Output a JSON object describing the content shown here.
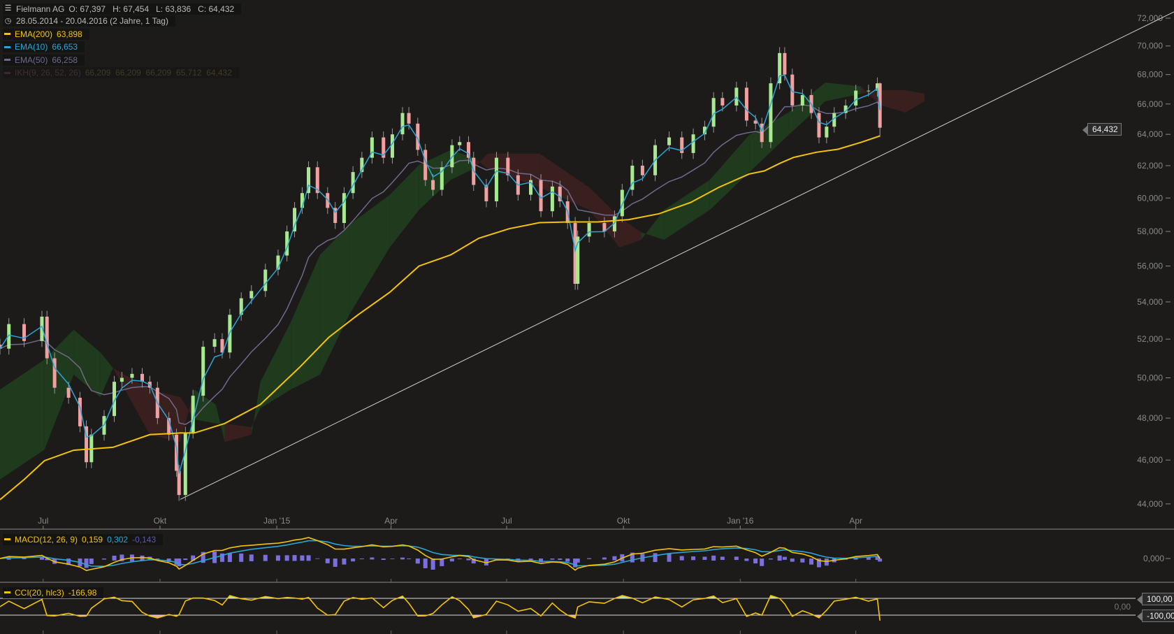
{
  "header": {
    "instrument": "Fielmann AG",
    "ohlc": "O: 67,397   H: 67,454   L: 63,836   C: 64,432",
    "range": "28.05.2014 - 20.04.2016 (2 Jahre, 1 Tag)",
    "icons": {
      "chart": "chart-settings-icon",
      "time": "clock-icon"
    }
  },
  "legend": [
    {
      "label": "EMA(200)",
      "value": "63,898",
      "color": "#f5c400"
    },
    {
      "label": "EMA(10)",
      "value": "66,653",
      "color": "#2aa6d6"
    },
    {
      "label": "EMA(50)",
      "value": "66,258",
      "color": "#6e6a8a"
    },
    {
      "label": "IKH(9, 26, 52, 26)",
      "value": "66,209  66,209  66,209  65,712  64,432",
      "color": "#3a2a35"
    }
  ],
  "macd_legend": {
    "label": "MACD(12, 26, 9)",
    "v1": "0,159",
    "v2": "0,302",
    "v3": "-0,143"
  },
  "cci_legend": {
    "label": "CCI(20, hlc3)",
    "value": "-166,98"
  },
  "last_price_tag": "64,432",
  "macd_axis": {
    "zero": "0,000"
  },
  "cci_axis": {
    "upper": "100,00",
    "zero": "0,00",
    "lower": "-100,00"
  },
  "colors": {
    "background": "#1c1b1a",
    "up": "#a8e890",
    "down": "#f0a0a0",
    "cloud_up": "#1f3a1c",
    "cloud_down": "#3a1f1f",
    "histogram": "#7b6fe0",
    "macd": "#f5c400",
    "signal": "#2aa6d6",
    "cci": "#f5c400",
    "trendline": "#d0d0d0"
  },
  "chart_data": {
    "type": "candlestick",
    "scale": "log",
    "ylim": [
      44000,
      72000
    ],
    "y_ticks": [
      "72,000",
      "70,000",
      "68,000",
      "66,000",
      "64,000",
      "62,000",
      "60,000",
      "58,000",
      "56,000",
      "54,000",
      "52,000",
      "50,000",
      "48,000",
      "46,000",
      "44,000"
    ],
    "y_tick_values": [
      72000,
      70000,
      68000,
      66000,
      64000,
      62000,
      60000,
      58000,
      56000,
      54000,
      52000,
      50000,
      48000,
      46000,
      44000
    ],
    "x_range": [
      "2014-05-28",
      "2016-04-20"
    ],
    "x_ticks": [
      {
        "date": "2014-07-01",
        "label": "Jul"
      },
      {
        "date": "2014-10-01",
        "label": "Okt"
      },
      {
        "date": "2015-01-01",
        "label": "Jan '15"
      },
      {
        "date": "2015-04-01",
        "label": "Apr"
      },
      {
        "date": "2015-07-01",
        "label": "Jul"
      },
      {
        "date": "2015-10-01",
        "label": "Okt"
      },
      {
        "date": "2016-01-01",
        "label": "Jan '16"
      },
      {
        "date": "2016-04-01",
        "label": "Apr"
      }
    ],
    "last_candle": {
      "open": 67397,
      "high": 67454,
      "low": 63836,
      "close": 64432
    },
    "close": [
      [
        "2014-05-28",
        51500
      ],
      [
        "2014-06-04",
        52800
      ],
      [
        "2014-06-16",
        51900
      ],
      [
        "2014-06-30",
        53200
      ],
      [
        "2014-07-04",
        51000
      ],
      [
        "2014-07-10",
        49500
      ],
      [
        "2014-07-21",
        49000
      ],
      [
        "2014-07-30",
        47600
      ],
      [
        "2014-08-04",
        45900
      ],
      [
        "2014-08-08",
        47200
      ],
      [
        "2014-08-18",
        48100
      ],
      [
        "2014-08-26",
        49800
      ],
      [
        "2014-09-01",
        50000
      ],
      [
        "2014-09-09",
        50200
      ],
      [
        "2014-09-17",
        49800
      ],
      [
        "2014-09-23",
        49500
      ],
      [
        "2014-09-29",
        48000
      ],
      [
        "2014-10-08",
        47200
      ],
      [
        "2014-10-14",
        45500
      ],
      [
        "2014-10-16",
        44400
      ],
      [
        "2014-10-21",
        47300
      ],
      [
        "2014-10-27",
        49100
      ],
      [
        "2014-11-04",
        51600
      ],
      [
        "2014-11-13",
        52000
      ],
      [
        "2014-11-19",
        51300
      ],
      [
        "2014-11-25",
        53300
      ],
      [
        "2014-12-04",
        54200
      ],
      [
        "2014-12-12",
        54600
      ],
      [
        "2014-12-23",
        55800
      ],
      [
        "2015-01-02",
        56600
      ],
      [
        "2015-01-09",
        58000
      ],
      [
        "2015-01-15",
        59400
      ],
      [
        "2015-01-21",
        60300
      ],
      [
        "2015-01-26",
        61900
      ],
      [
        "2015-02-02",
        60300
      ],
      [
        "2015-02-10",
        59400
      ],
      [
        "2015-02-16",
        58500
      ],
      [
        "2015-02-23",
        60300
      ],
      [
        "2015-03-02",
        61600
      ],
      [
        "2015-03-09",
        62500
      ],
      [
        "2015-03-17",
        63800
      ],
      [
        "2015-03-26",
        62500
      ],
      [
        "2015-04-02",
        64000
      ],
      [
        "2015-04-10",
        65400
      ],
      [
        "2015-04-15",
        64700
      ],
      [
        "2015-04-22",
        63000
      ],
      [
        "2015-04-28",
        61100
      ],
      [
        "2015-05-04",
        60500
      ],
      [
        "2015-05-11",
        61900
      ],
      [
        "2015-05-19",
        63300
      ],
      [
        "2015-05-25",
        63500
      ],
      [
        "2015-06-01",
        62500
      ],
      [
        "2015-06-05",
        60800
      ],
      [
        "2015-06-15",
        59800
      ],
      [
        "2015-06-23",
        62500
      ],
      [
        "2015-07-02",
        61400
      ],
      [
        "2015-07-10",
        60200
      ],
      [
        "2015-07-20",
        61100
      ],
      [
        "2015-07-28",
        59200
      ],
      [
        "2015-08-06",
        60700
      ],
      [
        "2015-08-12",
        59800
      ],
      [
        "2015-08-18",
        58500
      ],
      [
        "2015-08-24",
        55000
      ],
      [
        "2015-08-26",
        57700
      ],
      [
        "2015-09-04",
        58500
      ],
      [
        "2015-09-16",
        58000
      ],
      [
        "2015-09-24",
        58900
      ],
      [
        "2015-09-30",
        60500
      ],
      [
        "2015-10-08",
        62000
      ],
      [
        "2015-10-16",
        61400
      ],
      [
        "2015-10-26",
        63300
      ],
      [
        "2015-11-06",
        63800
      ],
      [
        "2015-11-16",
        62800
      ],
      [
        "2015-11-25",
        64000
      ],
      [
        "2015-12-04",
        64500
      ],
      [
        "2015-12-11",
        66400
      ],
      [
        "2015-12-18",
        65900
      ],
      [
        "2015-12-29",
        67100
      ],
      [
        "2016-01-06",
        64900
      ],
      [
        "2016-01-13",
        64700
      ],
      [
        "2016-01-18",
        63500
      ],
      [
        "2016-01-25",
        67400
      ],
      [
        "2016-02-01",
        69500
      ],
      [
        "2016-02-05",
        68000
      ],
      [
        "2016-02-11",
        65900
      ],
      [
        "2016-02-19",
        66600
      ],
      [
        "2016-02-26",
        65400
      ],
      [
        "2016-03-03",
        63800
      ],
      [
        "2016-03-09",
        64500
      ],
      [
        "2016-03-15",
        65400
      ],
      [
        "2016-03-24",
        65900
      ],
      [
        "2016-04-01",
        66900
      ],
      [
        "2016-04-11",
        66900
      ],
      [
        "2016-04-18",
        67397
      ],
      [
        "2016-04-20",
        64432
      ]
    ],
    "ema200": [
      [
        "2014-05-28",
        44190
      ],
      [
        "2014-06-16",
        45100
      ],
      [
        "2014-07-02",
        45970
      ],
      [
        "2014-07-25",
        46460
      ],
      [
        "2014-08-25",
        46600
      ],
      [
        "2014-09-23",
        47200
      ],
      [
        "2014-10-17",
        47280
      ],
      [
        "2014-10-28",
        47280
      ],
      [
        "2014-11-21",
        47740
      ],
      [
        "2014-12-19",
        48660
      ],
      [
        "2015-01-19",
        50540
      ],
      [
        "2015-02-11",
        52100
      ],
      [
        "2015-03-06",
        53300
      ],
      [
        "2015-03-31",
        54530
      ],
      [
        "2015-04-23",
        56000
      ],
      [
        "2015-05-18",
        56640
      ],
      [
        "2015-06-09",
        57600
      ],
      [
        "2015-07-03",
        58160
      ],
      [
        "2015-07-27",
        58520
      ],
      [
        "2015-08-19",
        58560
      ],
      [
        "2015-09-11",
        58560
      ],
      [
        "2015-10-05",
        58700
      ],
      [
        "2015-10-29",
        59050
      ],
      [
        "2015-11-23",
        59730
      ],
      [
        "2015-12-15",
        60650
      ],
      [
        "2016-01-08",
        61480
      ],
      [
        "2016-01-20",
        61670
      ],
      [
        "2016-02-01",
        62140
      ],
      [
        "2016-02-12",
        62520
      ],
      [
        "2016-03-01",
        62850
      ],
      [
        "2016-03-18",
        63040
      ],
      [
        "2016-04-05",
        63480
      ],
      [
        "2016-04-20",
        63898
      ]
    ],
    "ichimoku_cloud": [
      [
        "2014-05-28",
        49410,
        45100
      ],
      [
        "2014-07-02",
        50930,
        46490
      ],
      [
        "2014-07-25",
        52500,
        50160
      ],
      [
        "2014-08-15",
        51310,
        49030
      ],
      [
        "2014-08-25",
        50500,
        50500
      ],
      [
        "2014-09-23",
        47200,
        49410
      ],
      [
        "2014-10-17",
        46850,
        49030
      ],
      [
        "2014-10-28",
        49410,
        47930
      ],
      [
        "2014-11-14",
        48660,
        47740
      ],
      [
        "2014-11-21",
        46850,
        47740
      ],
      [
        "2014-12-12",
        47200,
        47560
      ],
      [
        "2014-12-19",
        49780,
        48480
      ],
      [
        "2015-01-12",
        52900,
        49410
      ],
      [
        "2015-02-04",
        56640,
        50160
      ],
      [
        "2015-02-27",
        58390,
        53300
      ],
      [
        "2015-03-31",
        60190,
        57070
      ],
      [
        "2015-04-23",
        62050,
        59280
      ],
      [
        "2015-05-18",
        62990,
        61110
      ],
      [
        "2015-06-05",
        62520,
        61810
      ],
      [
        "2015-06-16",
        61810,
        62760
      ],
      [
        "2015-07-27",
        60650,
        62760
      ],
      [
        "2015-09-04",
        59280,
        60650
      ],
      [
        "2015-09-28",
        57070,
        58830
      ],
      [
        "2015-10-15",
        57510,
        57940
      ],
      [
        "2015-11-02",
        59280,
        57510
      ],
      [
        "2015-12-08",
        61110,
        59280
      ],
      [
        "2016-01-08",
        63960,
        61580
      ],
      [
        "2016-02-08",
        65430,
        63960
      ],
      [
        "2016-03-08",
        67450,
        66180
      ],
      [
        "2016-04-05",
        67190,
        66690
      ],
      [
        "2016-04-20",
        65930,
        66940
      ],
      [
        "2016-05-10",
        65430,
        66940
      ],
      [
        "2016-05-25",
        66180,
        66690
      ]
    ],
    "trendline": [
      [
        "2014-10-17",
        44200
      ],
      [
        "2016-04-20",
        62600
      ]
    ]
  }
}
